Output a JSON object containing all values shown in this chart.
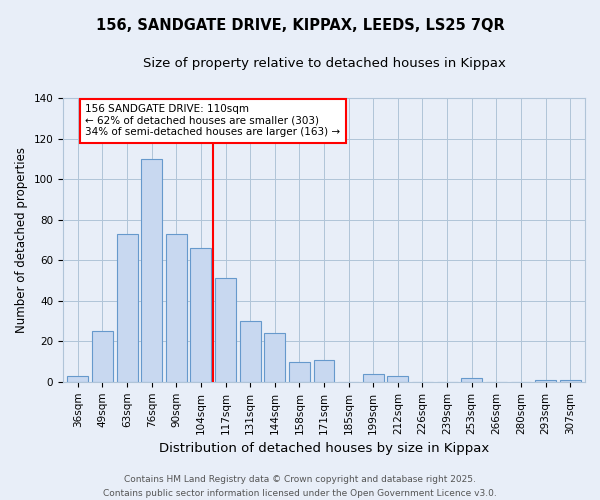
{
  "title1": "156, SANDGATE DRIVE, KIPPAX, LEEDS, LS25 7QR",
  "title2": "Size of property relative to detached houses in Kippax",
  "xlabel": "Distribution of detached houses by size in Kippax",
  "ylabel": "Number of detached properties",
  "categories": [
    "36sqm",
    "49sqm",
    "63sqm",
    "76sqm",
    "90sqm",
    "104sqm",
    "117sqm",
    "131sqm",
    "144sqm",
    "158sqm",
    "171sqm",
    "185sqm",
    "199sqm",
    "212sqm",
    "226sqm",
    "239sqm",
    "253sqm",
    "266sqm",
    "280sqm",
    "293sqm",
    "307sqm"
  ],
  "values": [
    3,
    25,
    73,
    110,
    73,
    66,
    51,
    30,
    24,
    10,
    11,
    0,
    4,
    3,
    0,
    0,
    2,
    0,
    0,
    1,
    1
  ],
  "bar_color": "#c8d8f0",
  "bar_edge_color": "#6699cc",
  "bar_edge_width": 0.8,
  "vline_color": "red",
  "vline_label": "156 SANDGATE DRIVE: 110sqm",
  "annotation_line1": "← 62% of detached houses are smaller (303)",
  "annotation_line2": "34% of semi-detached houses are larger (163) →",
  "box_color": "white",
  "box_edge_color": "red",
  "grid_color": "#b0c4d8",
  "background_color": "#e8eef8",
  "ylim": [
    0,
    140
  ],
  "yticks": [
    0,
    20,
    40,
    60,
    80,
    100,
    120,
    140
  ],
  "footer": "Contains HM Land Registry data © Crown copyright and database right 2025.\nContains public sector information licensed under the Open Government Licence v3.0.",
  "title1_fontsize": 10.5,
  "title2_fontsize": 9.5,
  "xlabel_fontsize": 9.5,
  "ylabel_fontsize": 8.5,
  "tick_fontsize": 7.5,
  "footer_fontsize": 6.5,
  "annot_fontsize": 7.5
}
